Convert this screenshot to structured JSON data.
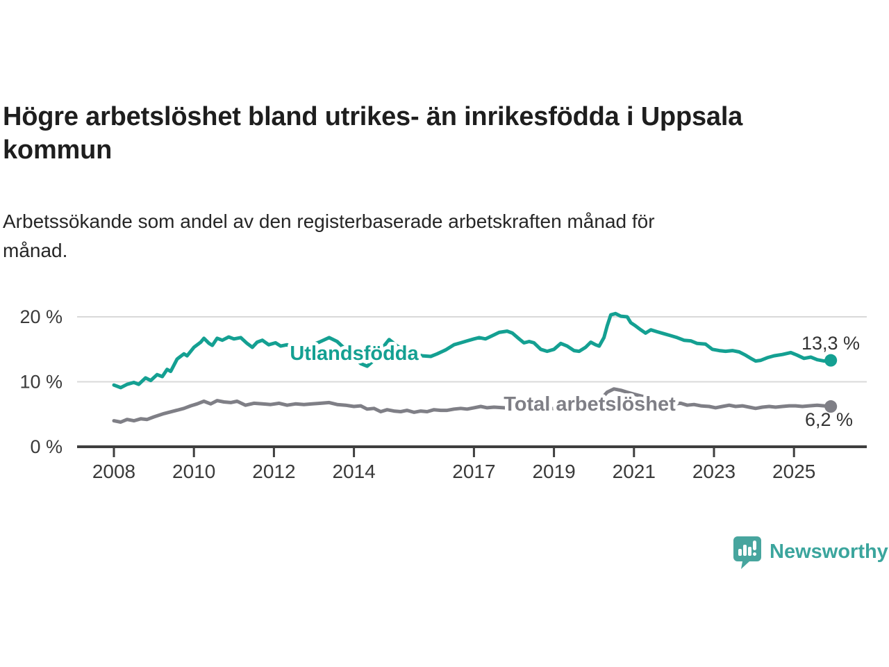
{
  "title": "Högre arbetslöshet bland utrikes- än inrikesfödda i Uppsala kommun",
  "title_lines": [
    "Högre arbetslöshet bland utrikes- än inrikesfödda i Uppsala",
    "kommun"
  ],
  "subtitle": "Arbetssökande som andel av den registerbaserade arbetskraften månad för månad.",
  "subtitle_lines": [
    "Arbetssökande som andel av den registerbaserade arbetskraften månad för",
    "månad."
  ],
  "branding": {
    "logo_text": "Newsworthy",
    "logo_icon": "newsworthy-speech-bubble-bar-chart-icon",
    "logo_color": "#47a59e",
    "wordmark_color": "#3ba59d"
  },
  "colors": {
    "background": "#ffffff",
    "axis": "#3f3f3f",
    "gridline": "#d9d9d9",
    "tick_text": "#3a3a3a",
    "value_label_text": "#333333"
  },
  "chart_data": {
    "type": "line",
    "title": "Högre arbetslöshet bland utrikes- än inrikesfödda i Uppsala kommun",
    "subtitle": "Arbetssökande som andel av den registerbaserade arbetskraften månad för månad.",
    "xlabel": "",
    "ylabel": "",
    "xlim": [
      2007.9,
      2026.2
    ],
    "ylim": [
      0,
      21.5
    ],
    "grid": "horizontal",
    "legend_position": "inline-line-labels",
    "x_ticks": [
      {
        "value": 2008,
        "label": "2008"
      },
      {
        "value": 2010,
        "label": "2010"
      },
      {
        "value": 2012,
        "label": "2012"
      },
      {
        "value": 2014,
        "label": "2014"
      },
      {
        "value": 2017,
        "label": "2017"
      },
      {
        "value": 2019,
        "label": "2019"
      },
      {
        "value": 2021,
        "label": "2021"
      },
      {
        "value": 2023,
        "label": "2023"
      },
      {
        "value": 2025,
        "label": "2025"
      }
    ],
    "y_ticks": [
      {
        "value": 0,
        "label": "0 %"
      },
      {
        "value": 10,
        "label": "10 %"
      },
      {
        "value": 20,
        "label": "20 %"
      }
    ],
    "series": [
      {
        "name": "Utlandsfödda",
        "color": "#14a092",
        "end_label": "13,3 %",
        "end_value": 13.3,
        "points": [
          [
            2008.0,
            9.5
          ],
          [
            2008.17,
            9.1
          ],
          [
            2008.33,
            9.6
          ],
          [
            2008.5,
            9.9
          ],
          [
            2008.62,
            9.6
          ],
          [
            2008.79,
            10.6
          ],
          [
            2008.92,
            10.2
          ],
          [
            2009.08,
            11.1
          ],
          [
            2009.21,
            10.8
          ],
          [
            2009.33,
            11.9
          ],
          [
            2009.42,
            11.6
          ],
          [
            2009.58,
            13.5
          ],
          [
            2009.75,
            14.3
          ],
          [
            2009.83,
            14.0
          ],
          [
            2010.0,
            15.3
          ],
          [
            2010.17,
            16.1
          ],
          [
            2010.25,
            16.7
          ],
          [
            2010.38,
            15.9
          ],
          [
            2010.46,
            15.6
          ],
          [
            2010.58,
            16.7
          ],
          [
            2010.71,
            16.4
          ],
          [
            2010.87,
            16.9
          ],
          [
            2011.0,
            16.6
          ],
          [
            2011.17,
            16.8
          ],
          [
            2011.33,
            15.9
          ],
          [
            2011.46,
            15.3
          ],
          [
            2011.58,
            16.1
          ],
          [
            2011.71,
            16.4
          ],
          [
            2011.87,
            15.7
          ],
          [
            2012.04,
            16.0
          ],
          [
            2012.17,
            15.5
          ],
          [
            2012.33,
            15.7
          ],
          [
            2012.5,
            15.1
          ],
          [
            2012.71,
            15.2
          ],
          [
            2012.92,
            15.6
          ],
          [
            2013.13,
            16.1
          ],
          [
            2013.38,
            16.8
          ],
          [
            2013.58,
            16.2
          ],
          [
            2013.79,
            15.0
          ],
          [
            2014.0,
            13.8
          ],
          [
            2014.17,
            12.8
          ],
          [
            2014.33,
            12.4
          ],
          [
            2014.5,
            13.3
          ],
          [
            2014.71,
            15.2
          ],
          [
            2014.88,
            16.5
          ],
          [
            2015.08,
            15.5
          ],
          [
            2015.29,
            14.8
          ],
          [
            2015.5,
            14.3
          ],
          [
            2015.71,
            14.0
          ],
          [
            2015.92,
            13.9
          ],
          [
            2016.08,
            14.3
          ],
          [
            2016.29,
            14.9
          ],
          [
            2016.5,
            15.7
          ],
          [
            2016.67,
            16.0
          ],
          [
            2016.83,
            16.3
          ],
          [
            2017.0,
            16.6
          ],
          [
            2017.13,
            16.8
          ],
          [
            2017.29,
            16.6
          ],
          [
            2017.46,
            17.1
          ],
          [
            2017.63,
            17.6
          ],
          [
            2017.83,
            17.8
          ],
          [
            2017.96,
            17.5
          ],
          [
            2018.13,
            16.6
          ],
          [
            2018.25,
            16.0
          ],
          [
            2018.38,
            16.2
          ],
          [
            2018.5,
            16.0
          ],
          [
            2018.67,
            15.0
          ],
          [
            2018.83,
            14.7
          ],
          [
            2019.0,
            15.0
          ],
          [
            2019.17,
            15.9
          ],
          [
            2019.33,
            15.5
          ],
          [
            2019.5,
            14.8
          ],
          [
            2019.63,
            14.7
          ],
          [
            2019.79,
            15.3
          ],
          [
            2019.92,
            16.1
          ],
          [
            2020.04,
            15.7
          ],
          [
            2020.13,
            15.5
          ],
          [
            2020.25,
            16.8
          ],
          [
            2020.33,
            18.6
          ],
          [
            2020.42,
            20.3
          ],
          [
            2020.54,
            20.5
          ],
          [
            2020.67,
            20.1
          ],
          [
            2020.83,
            20.0
          ],
          [
            2020.92,
            19.1
          ],
          [
            2021.04,
            18.6
          ],
          [
            2021.17,
            18.0
          ],
          [
            2021.29,
            17.5
          ],
          [
            2021.42,
            18.0
          ],
          [
            2021.58,
            17.7
          ],
          [
            2021.75,
            17.4
          ],
          [
            2021.92,
            17.1
          ],
          [
            2022.08,
            16.8
          ],
          [
            2022.25,
            16.4
          ],
          [
            2022.42,
            16.3
          ],
          [
            2022.58,
            15.9
          ],
          [
            2022.79,
            15.8
          ],
          [
            2022.96,
            15.0
          ],
          [
            2023.13,
            14.8
          ],
          [
            2023.29,
            14.7
          ],
          [
            2023.46,
            14.8
          ],
          [
            2023.63,
            14.6
          ],
          [
            2023.79,
            14.1
          ],
          [
            2023.92,
            13.6
          ],
          [
            2024.04,
            13.2
          ],
          [
            2024.17,
            13.3
          ],
          [
            2024.33,
            13.7
          ],
          [
            2024.5,
            14.0
          ],
          [
            2024.71,
            14.2
          ],
          [
            2024.92,
            14.5
          ],
          [
            2025.08,
            14.1
          ],
          [
            2025.25,
            13.6
          ],
          [
            2025.42,
            13.8
          ],
          [
            2025.58,
            13.4
          ],
          [
            2025.75,
            13.2
          ],
          [
            2025.92,
            13.3
          ]
        ]
      },
      {
        "name": "Total arbetslöshet",
        "color": "#7f7f86",
        "end_label": "6,2 %",
        "end_value": 6.2,
        "points": [
          [
            2008.0,
            4.0
          ],
          [
            2008.17,
            3.8
          ],
          [
            2008.33,
            4.2
          ],
          [
            2008.5,
            4.0
          ],
          [
            2008.67,
            4.3
          ],
          [
            2008.83,
            4.2
          ],
          [
            2009.0,
            4.6
          ],
          [
            2009.25,
            5.1
          ],
          [
            2009.5,
            5.5
          ],
          [
            2009.75,
            5.9
          ],
          [
            2009.92,
            6.3
          ],
          [
            2010.08,
            6.6
          ],
          [
            2010.25,
            7.0
          ],
          [
            2010.42,
            6.6
          ],
          [
            2010.58,
            7.1
          ],
          [
            2010.75,
            6.9
          ],
          [
            2010.92,
            6.8
          ],
          [
            2011.08,
            7.0
          ],
          [
            2011.29,
            6.4
          ],
          [
            2011.5,
            6.7
          ],
          [
            2011.71,
            6.6
          ],
          [
            2011.92,
            6.5
          ],
          [
            2012.13,
            6.7
          ],
          [
            2012.33,
            6.4
          ],
          [
            2012.54,
            6.6
          ],
          [
            2012.75,
            6.5
          ],
          [
            2012.96,
            6.6
          ],
          [
            2013.17,
            6.7
          ],
          [
            2013.38,
            6.8
          ],
          [
            2013.58,
            6.5
          ],
          [
            2013.79,
            6.4
          ],
          [
            2014.0,
            6.2
          ],
          [
            2014.17,
            6.3
          ],
          [
            2014.33,
            5.8
          ],
          [
            2014.5,
            5.9
          ],
          [
            2014.67,
            5.4
          ],
          [
            2014.83,
            5.7
          ],
          [
            2015.0,
            5.5
          ],
          [
            2015.17,
            5.4
          ],
          [
            2015.33,
            5.6
          ],
          [
            2015.5,
            5.3
          ],
          [
            2015.67,
            5.5
          ],
          [
            2015.83,
            5.4
          ],
          [
            2016.0,
            5.7
          ],
          [
            2016.17,
            5.6
          ],
          [
            2016.33,
            5.6
          ],
          [
            2016.5,
            5.8
          ],
          [
            2016.67,
            5.9
          ],
          [
            2016.83,
            5.8
          ],
          [
            2017.0,
            6.0
          ],
          [
            2017.17,
            6.2
          ],
          [
            2017.33,
            6.0
          ],
          [
            2017.5,
            6.1
          ],
          [
            2017.75,
            6.0
          ],
          [
            2018.0,
            5.9
          ],
          [
            2018.25,
            5.8
          ],
          [
            2018.5,
            5.9
          ],
          [
            2018.75,
            5.7
          ],
          [
            2019.0,
            5.9
          ],
          [
            2019.25,
            6.0
          ],
          [
            2019.5,
            6.1
          ],
          [
            2019.75,
            6.2
          ],
          [
            2020.0,
            6.3
          ],
          [
            2020.17,
            7.3
          ],
          [
            2020.33,
            8.4
          ],
          [
            2020.5,
            8.9
          ],
          [
            2020.67,
            8.7
          ],
          [
            2020.83,
            8.4
          ],
          [
            2021.0,
            8.1
          ],
          [
            2021.25,
            7.7
          ],
          [
            2021.5,
            7.2
          ],
          [
            2021.75,
            6.8
          ],
          [
            2022.0,
            6.6
          ],
          [
            2022.17,
            6.7
          ],
          [
            2022.33,
            6.4
          ],
          [
            2022.5,
            6.5
          ],
          [
            2022.67,
            6.3
          ],
          [
            2022.88,
            6.2
          ],
          [
            2023.04,
            6.0
          ],
          [
            2023.21,
            6.2
          ],
          [
            2023.38,
            6.4
          ],
          [
            2023.54,
            6.2
          ],
          [
            2023.71,
            6.3
          ],
          [
            2023.88,
            6.1
          ],
          [
            2024.04,
            5.9
          ],
          [
            2024.21,
            6.1
          ],
          [
            2024.38,
            6.2
          ],
          [
            2024.54,
            6.1
          ],
          [
            2024.71,
            6.2
          ],
          [
            2024.88,
            6.3
          ],
          [
            2025.04,
            6.3
          ],
          [
            2025.21,
            6.2
          ],
          [
            2025.38,
            6.3
          ],
          [
            2025.58,
            6.4
          ],
          [
            2025.75,
            6.3
          ],
          [
            2025.92,
            6.2
          ]
        ]
      }
    ]
  }
}
